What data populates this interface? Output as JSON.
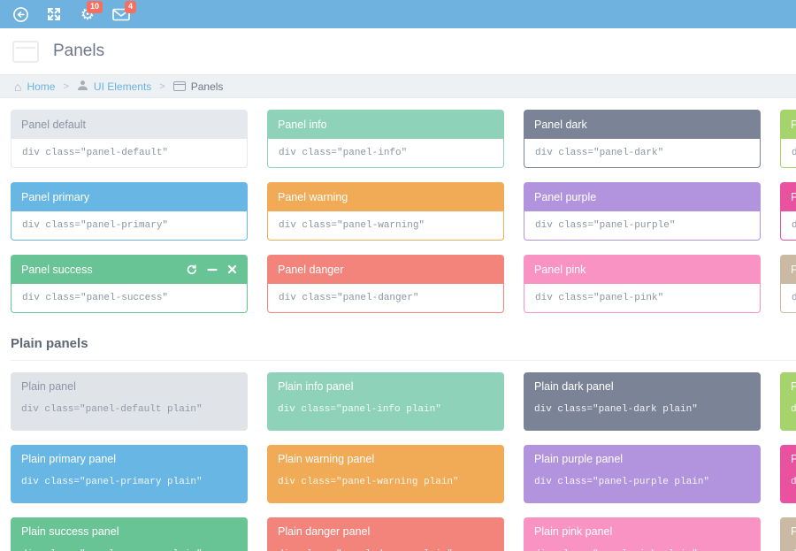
{
  "navbar": {
    "bg": "#6fb2e0",
    "badge_color": "#f56f62",
    "icons": [
      {
        "name": "collapse-circle-arrow",
        "badge": null
      },
      {
        "name": "fullscreen-expand",
        "badge": null
      },
      {
        "name": "settings-gear",
        "badge": "10"
      },
      {
        "name": "messages-envelope",
        "badge": "4"
      }
    ],
    "gear_glyph": "⚙"
  },
  "page": {
    "title": "Panels"
  },
  "breadcrumb": {
    "home_glyph": "⌂",
    "separator": ">",
    "items": [
      {
        "label": "Home",
        "icon": "home-icon"
      },
      {
        "label": "UI Elements",
        "icon": "user-icon"
      },
      {
        "label": "Panels",
        "icon": "window-icon"
      }
    ]
  },
  "plain_section_heading": "Plain panels",
  "panels": {
    "colored": [
      {
        "name": "default",
        "title": "Panel default",
        "code": "div class=″panel-default″",
        "color": "#e5e8ec",
        "light": true
      },
      {
        "name": "info",
        "title": "Panel info",
        "code": "div class=″panel-info″",
        "color": "#8ed3b9"
      },
      {
        "name": "dark",
        "title": "Panel dark",
        "code": "div class=″panel-dark″",
        "color": "#7a8496"
      },
      {
        "name": "green",
        "title": "Panel green",
        "code": "div class=″panel-green″",
        "color": "#a4d46b"
      },
      {
        "name": "primary",
        "title": "Panel primary",
        "code": "div class=″panel-primary″",
        "color": "#67b6e4"
      },
      {
        "name": "warning",
        "title": "Panel warning",
        "code": "div class=″panel-warning″",
        "color": "#f1aa55"
      },
      {
        "name": "purple",
        "title": "Panel purple",
        "code": "div class=″panel-purple″",
        "color": "#b293dd"
      },
      {
        "name": "magenta",
        "title": "Panel magenta",
        "code": "div class=″panel-magenta″",
        "color": "#e9529f"
      },
      {
        "name": "success",
        "title": "Panel success",
        "code": "div class=″panel-success″",
        "color": "#69c495",
        "tools": true
      },
      {
        "name": "danger",
        "title": "Panel danger",
        "code": "div class=″panel-danger″",
        "color": "#f3847b"
      },
      {
        "name": "pink",
        "title": "Panel pink",
        "code": "div class=″panel-pink″",
        "color": "#f893c4"
      },
      {
        "name": "brown",
        "title": "Panel brown",
        "code": "div class=″panel-brown″",
        "color": "#cab9a3"
      }
    ],
    "plain": [
      {
        "name": "default-plain",
        "title": "Plain panel",
        "code": "div class=″panel-default plain″",
        "color": "#e0e4e9",
        "light": true
      },
      {
        "name": "info-plain",
        "title": "Plain info panel",
        "code": "div class=″panel-info plain″",
        "color": "#8ed3b9"
      },
      {
        "name": "dark-plain",
        "title": "Plain dark panel",
        "code": "div class=″panel-dark plain″",
        "color": "#7a8496"
      },
      {
        "name": "green-plain",
        "title": "Plain green panel",
        "code": "div class=″panel-green plain″",
        "color": "#a4d46b"
      },
      {
        "name": "primary-plain",
        "title": "Plain primary panel",
        "code": "div class=″panel-primary plain″",
        "color": "#67b6e4"
      },
      {
        "name": "warning-plain",
        "title": "Plain warning panel",
        "code": "div class=″panel-warning plain″",
        "color": "#f1aa55"
      },
      {
        "name": "purple-plain",
        "title": "Plain purple panel",
        "code": "div class=″panel-purple plain″",
        "color": "#b293dd"
      },
      {
        "name": "magenta-plain",
        "title": "Plain magenta panel",
        "code": "div class=″panel-magenta plain″",
        "color": "#e9529f"
      },
      {
        "name": "success-plain",
        "title": "Plain success panel",
        "code": "div class=″panel-success plain″",
        "color": "#69c495"
      },
      {
        "name": "danger-plain",
        "title": "Plain danger panel",
        "code": "div class=″panel-danger plain″",
        "color": "#f3847b"
      },
      {
        "name": "pink-plain",
        "title": "Plain pink panel",
        "code": "div class=″panel-pink plain″",
        "color": "#f893c4"
      },
      {
        "name": "brown-plain",
        "title": "Plain brown panel",
        "code": "div class=″panel-brown plain″",
        "color": "#cab9a3"
      }
    ]
  },
  "panel_tools": [
    {
      "name": "refresh"
    },
    {
      "name": "minimize"
    },
    {
      "name": "close"
    }
  ]
}
